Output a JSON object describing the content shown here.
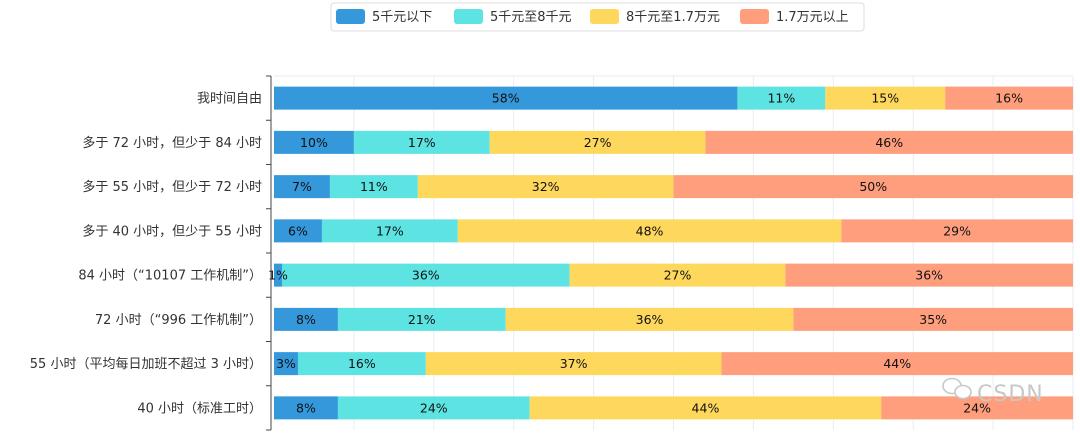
{
  "chart_data": {
    "type": "bar",
    "orientation": "horizontal",
    "stacked": true,
    "normalized": true,
    "categories": [
      "我时间自由",
      "多于 72 小时，但少于 84 小时",
      "多于 55 小时，但少于 72 小时",
      "多于 40 小时，但少于 55 小时",
      "84 小时（“10107 工作机制”）",
      "72 小时（“996 工作机制”）",
      "55 小时（平均每日加班不超过 3 小时）",
      "40 小时（标准工时）"
    ],
    "series": [
      {
        "name": "5千元以下",
        "color": "#3498db",
        "values": [
          58,
          10,
          7,
          6,
          1,
          8,
          3,
          8
        ]
      },
      {
        "name": "5千元至8千元",
        "color": "#5ee3e3",
        "values": [
          11,
          17,
          11,
          17,
          36,
          21,
          16,
          24
        ]
      },
      {
        "name": "8千元至1.7万元",
        "color": "#fdd85d",
        "values": [
          15,
          27,
          32,
          48,
          27,
          36,
          37,
          44
        ]
      },
      {
        "name": "1.7万元以上",
        "color": "#fe9e7d",
        "values": [
          16,
          46,
          50,
          29,
          36,
          35,
          44,
          24
        ]
      }
    ],
    "value_suffix": "%",
    "title": "",
    "xlabel": "",
    "ylabel": "",
    "xlim": [
      0,
      100
    ],
    "grid": true,
    "legend_position": "top-center"
  },
  "watermark": {
    "text": "CSDN",
    "icon": "wechat-icon"
  }
}
